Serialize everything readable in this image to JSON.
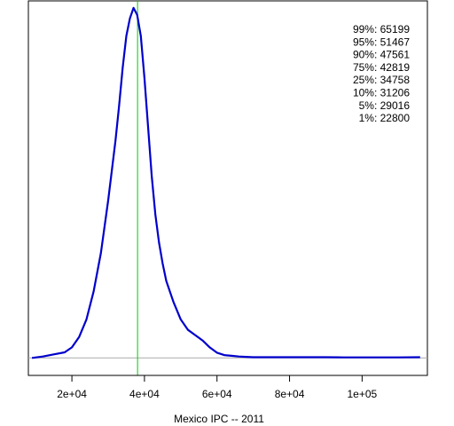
{
  "chart_data": {
    "type": "line",
    "xlabel": "Mexico IPC -- 2011",
    "x_ticks": [
      {
        "value": 20000,
        "label": "2e+04"
      },
      {
        "value": 40000,
        "label": "4e+04"
      },
      {
        "value": 60000,
        "label": "6e+04"
      },
      {
        "value": 80000,
        "label": "8e+04"
      },
      {
        "value": 100000,
        "label": "1e+05"
      }
    ],
    "xlim": [
      8000,
      118000
    ],
    "ylim": [
      -0.05,
      1.02
    ],
    "y_ticks_shown": false,
    "baseline_y": 0,
    "marker_x": 38100,
    "quantiles": [
      {
        "label": "99%: 65199"
      },
      {
        "label": "95%: 51467"
      },
      {
        "label": "90%: 47561"
      },
      {
        "label": "75%: 42819"
      },
      {
        "label": "25%: 34758"
      },
      {
        "label": "10%: 31206"
      },
      {
        "label": "5%: 29016"
      },
      {
        "label": "1%: 22800"
      }
    ],
    "series": [
      {
        "x": [
          9000,
          12000,
          15000,
          18000,
          20000,
          22000,
          24000,
          26000,
          28000,
          30000,
          32000,
          33000,
          34000,
          35000,
          36000,
          37000,
          38000,
          39000,
          40000,
          41000,
          42000,
          43000,
          44000,
          45000,
          46000,
          48000,
          50000,
          52000,
          54000,
          56000,
          58000,
          60000,
          62000,
          64000,
          66000,
          68000,
          70000,
          75000,
          80000,
          85000,
          90000,
          95000,
          100000,
          105000,
          110000,
          116000
        ],
        "y": [
          0.0,
          0.004,
          0.01,
          0.016,
          0.03,
          0.06,
          0.11,
          0.19,
          0.3,
          0.45,
          0.62,
          0.72,
          0.83,
          0.92,
          0.97,
          1.0,
          0.98,
          0.92,
          0.8,
          0.66,
          0.52,
          0.41,
          0.33,
          0.27,
          0.22,
          0.16,
          0.11,
          0.08,
          0.065,
          0.05,
          0.03,
          0.015,
          0.008,
          0.006,
          0.004,
          0.003,
          0.002,
          0.002,
          0.002,
          0.002,
          0.002,
          0.0015,
          0.0015,
          0.0015,
          0.0015,
          0.002
        ]
      }
    ],
    "colors": {
      "line": "#0000cc",
      "marker": "#00cc00",
      "baseline": "#aaaaaa",
      "frame": "#000000"
    }
  }
}
